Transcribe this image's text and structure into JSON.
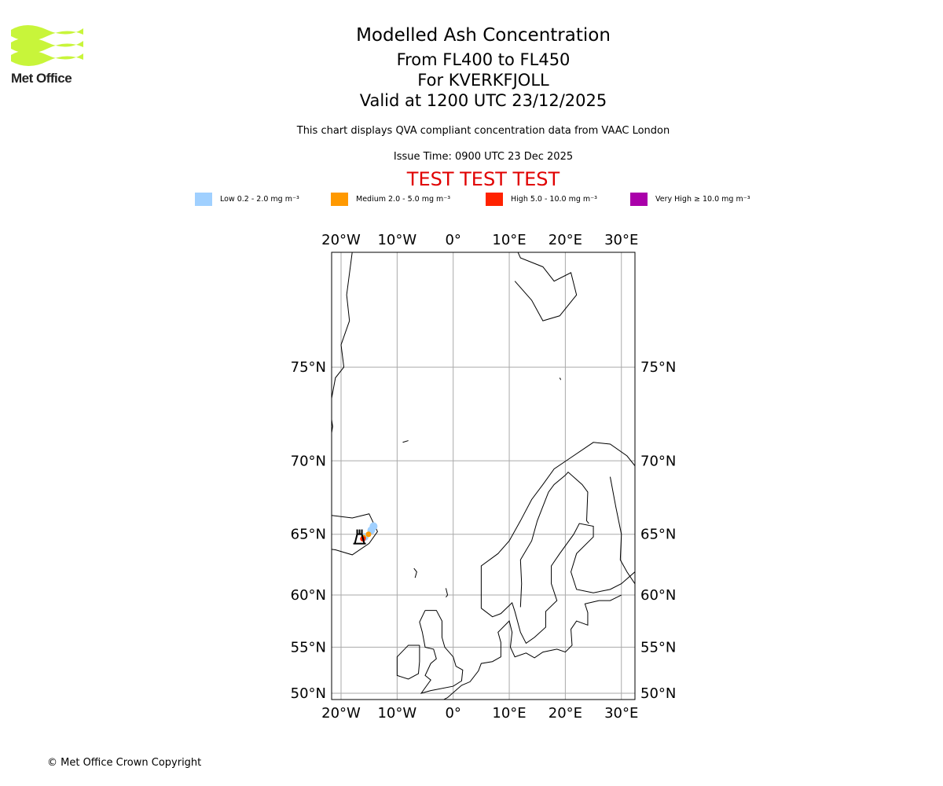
{
  "logo": {
    "text": "Met Office"
  },
  "header": {
    "title": "Modelled Ash Concentration",
    "levels": "From FL400 to FL450",
    "volcano": "For KVERKFJOLL",
    "valid": "Valid at 1200 UTC 23/12/2025",
    "description": "This chart displays QVA compliant concentration data from VAAC London",
    "issue": "Issue Time: 0900 UTC 23 Dec 2025",
    "test": "TEST TEST TEST"
  },
  "legend": [
    {
      "label": "Low 0.2 - 2.0 mg m⁻³",
      "color": "#a0d0ff"
    },
    {
      "label": "Medium 2.0 - 5.0 mg m⁻³",
      "color": "#ff9900"
    },
    {
      "label": "High 5.0 - 10.0 mg m⁻³",
      "color": "#ff2200"
    },
    {
      "label": "Very High ≥ 10.0 mg m⁻³",
      "color": "#aa00aa"
    }
  ],
  "chart_data": {
    "type": "map",
    "title": "Modelled Ash Concentration",
    "lon_ticks": [
      "20°W",
      "10°W",
      "0°",
      "10°E",
      "20°E",
      "30°E"
    ],
    "lon_values": [
      -20,
      -10,
      0,
      10,
      20,
      30
    ],
    "lat_ticks": [
      "75°N",
      "70°N",
      "65°N",
      "60°N",
      "55°N",
      "50°N"
    ],
    "lat_values": [
      75,
      70,
      65,
      60,
      55,
      50
    ],
    "extent": {
      "lon": [
        -21.7,
        32.4
      ],
      "lat": [
        49.7,
        79.9
      ]
    },
    "volcano": {
      "name": "KVERKFJOLL",
      "lon": -16.7,
      "lat": 64.65
    },
    "ash": [
      {
        "level": "Low",
        "lon": -14.2,
        "lat": 65.6
      },
      {
        "level": "Low",
        "lon": -14.6,
        "lat": 65.3
      },
      {
        "level": "Low",
        "lon": -15.8,
        "lat": 64.8
      },
      {
        "level": "Medium",
        "lon": -15.1,
        "lat": 65.0
      },
      {
        "level": "Medium",
        "lon": -16.0,
        "lat": 64.75
      },
      {
        "level": "High",
        "lon": -16.1,
        "lat": 64.65
      }
    ]
  },
  "footer": {
    "copyright": "© Met Office Crown Copyright"
  }
}
